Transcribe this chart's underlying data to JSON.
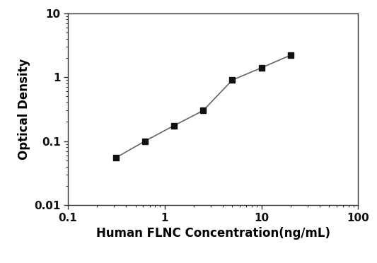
{
  "x_values": [
    0.313,
    0.625,
    1.25,
    2.5,
    5,
    10,
    20
  ],
  "y_values": [
    0.055,
    0.1,
    0.175,
    0.3,
    0.9,
    1.4,
    2.2
  ],
  "xlabel": "Human FLNC Concentration(ng/mL)",
  "ylabel": "Optical Density",
  "xlim": [
    0.1,
    100
  ],
  "ylim": [
    0.01,
    10
  ],
  "xticks": [
    0.1,
    1,
    10,
    100
  ],
  "yticks": [
    0.01,
    0.1,
    1,
    10
  ],
  "xtick_labels": [
    "0.1",
    "1",
    "10",
    "100"
  ],
  "ytick_labels": [
    "0.01",
    "0.1",
    "1",
    "10"
  ],
  "line_color": "#666666",
  "marker_color": "#111111",
  "marker": "s",
  "marker_size": 6,
  "line_width": 1.2,
  "background_color": "#ffffff",
  "xlabel_fontsize": 12,
  "ylabel_fontsize": 12,
  "tick_fontsize": 11
}
